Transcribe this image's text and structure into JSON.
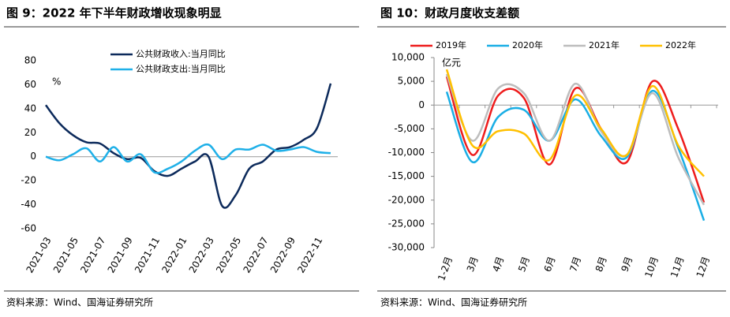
{
  "chart_data": [
    {
      "type": "line",
      "title": "图 9：2022 年下半年财政增收现象明显",
      "y_label": "%",
      "categories": [
        "2021-03",
        null,
        "2021-05",
        null,
        "2021-07",
        null,
        "2021-09",
        null,
        "2021-11",
        null,
        "2022-01",
        null,
        "2022-03",
        null,
        "2022-05",
        null,
        "2022-07",
        null,
        "2022-09",
        null,
        "2022-11",
        null
      ],
      "series": [
        {
          "name": "公共财政收入:当月同比",
          "color": "#0c2a5b",
          "values": [
            43,
            28,
            18,
            12,
            11,
            3,
            -2,
            -1,
            -12,
            -16,
            -10,
            -4,
            0,
            -41,
            -32,
            -10,
            -4,
            6,
            8,
            14,
            24,
            61
          ]
        },
        {
          "name": "公共财政支出:当月同比",
          "color": "#1fb0e8",
          "values": [
            0,
            -3,
            2,
            7,
            -4,
            8,
            -4,
            2,
            -13,
            -10,
            -4,
            5,
            10,
            -2,
            6,
            6,
            10,
            5,
            6,
            8,
            4,
            3
          ]
        }
      ],
      "ylim": [
        -60,
        80
      ],
      "yticks": [
        -60,
        -40,
        -20,
        0,
        20,
        40,
        60,
        80
      ],
      "source": "资料来源：Wind、国海证券研究所"
    },
    {
      "type": "line",
      "title": "图 10：财政月度收支差额",
      "y_label": "亿元",
      "categories": [
        "1-2月",
        "3月",
        "4月",
        "5月",
        "6月",
        "7月",
        "8月",
        "9月",
        "10月",
        "11月",
        "12月"
      ],
      "series": [
        {
          "name": "2019年",
          "color": "#ee1c1c",
          "values": [
            6000,
            -10500,
            2000,
            1500,
            -12500,
            3500,
            -5000,
            -12000,
            5000,
            -5000,
            -20500
          ]
        },
        {
          "name": "2020年",
          "color": "#1aaee5",
          "values": [
            2800,
            -12000,
            -2500,
            -1000,
            -7500,
            1200,
            -6500,
            -11000,
            3000,
            -9000,
            -24300
          ]
        },
        {
          "name": "2021年",
          "color": "#bdbdbd",
          "values": [
            6500,
            -7500,
            3500,
            2500,
            -7500,
            4500,
            -5500,
            -10500,
            2500,
            -11000,
            -21000
          ]
        },
        {
          "name": "2022年",
          "color": "#ffc000",
          "values": [
            7500,
            -8500,
            -5500,
            -6000,
            -11500,
            2000,
            -5000,
            -10500,
            4000,
            -8500,
            -15000
          ]
        }
      ],
      "ylim": [
        -30000,
        10000
      ],
      "yticks": [
        {
          "value": -30000,
          "label": "-30,000"
        },
        {
          "value": -25000,
          "label": "-25,000"
        },
        {
          "value": -20000,
          "label": "-20,000"
        },
        {
          "value": -15000,
          "label": "-15,000"
        },
        {
          "value": -10000,
          "label": "-10,000"
        },
        {
          "value": -5000,
          "label": "-5,000"
        },
        0,
        {
          "value": 5000,
          "label": "5,000"
        },
        {
          "value": 10000,
          "label": "10,000"
        }
      ],
      "source": "资料来源：Wind、国海证券研究所"
    }
  ]
}
